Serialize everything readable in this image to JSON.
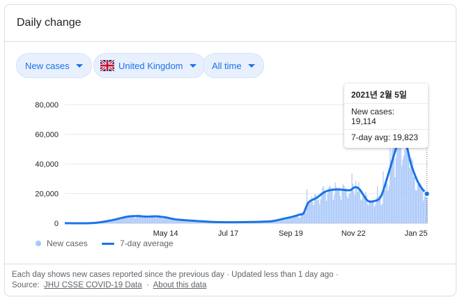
{
  "card": {
    "title": "Daily change"
  },
  "filters": {
    "metric": "New cases",
    "region": "United Kingdom",
    "range": "All time"
  },
  "icons": {
    "dropdown": "chevron-down-icon",
    "flag": "uk-flag-icon"
  },
  "colors": {
    "bar": "#a8c7fa",
    "line": "#1a73e8",
    "accent": "#1a73e8"
  },
  "tooltip": {
    "date": "2021년 2월 5일",
    "new_cases_label": "New cases: 19,114",
    "avg_label": "7-day avg: 19,823"
  },
  "legend": {
    "bars": "New cases",
    "line": "7-day average"
  },
  "footer": {
    "line1": "Each day shows new cases reported since the previous day · Updated less than 1 day ago ·",
    "source_prefix": "Source:",
    "source_link": "JHU CSSE COVID-19 Data",
    "separator": "·",
    "about_link": "About this data"
  },
  "chart_data": {
    "type": "bar",
    "x_ticks": [
      "May 14",
      "Jul 17",
      "Sep 19",
      "Nov 22",
      "Jan 25"
    ],
    "y_ticks": [
      "0",
      "20,000",
      "40,000",
      "60,000",
      "80,000"
    ],
    "ylim": [
      0,
      80000
    ],
    "grid": true,
    "series": [
      {
        "name": "7-day average",
        "type": "line",
        "points": [
          [
            "2020-02-01",
            0
          ],
          [
            "2020-03-01",
            100
          ],
          [
            "2020-03-20",
            2000
          ],
          [
            "2020-04-05",
            4400
          ],
          [
            "2020-04-15",
            4800
          ],
          [
            "2020-04-25",
            4400
          ],
          [
            "2020-05-05",
            4600
          ],
          [
            "2020-05-15",
            3800
          ],
          [
            "2020-05-25",
            2500
          ],
          [
            "2020-06-10",
            1700
          ],
          [
            "2020-06-30",
            900
          ],
          [
            "2020-07-20",
            650
          ],
          [
            "2020-08-10",
            800
          ],
          [
            "2020-08-30",
            1300
          ],
          [
            "2020-09-10",
            2800
          ],
          [
            "2020-09-20",
            4200
          ],
          [
            "2020-09-28",
            5800
          ],
          [
            "2020-10-02",
            6800
          ],
          [
            "2020-10-07",
            14000
          ],
          [
            "2020-10-15",
            17000
          ],
          [
            "2020-10-25",
            21500
          ],
          [
            "2020-11-05",
            22800
          ],
          [
            "2020-11-18",
            22200
          ],
          [
            "2020-11-23",
            24200
          ],
          [
            "2020-11-28",
            23000
          ],
          [
            "2020-12-06",
            15500
          ],
          [
            "2020-12-12",
            14800
          ],
          [
            "2020-12-20",
            18000
          ],
          [
            "2020-12-28",
            34000
          ],
          [
            "2021-01-04",
            49500
          ],
          [
            "2021-01-09",
            59500
          ],
          [
            "2021-01-14",
            55500
          ],
          [
            "2021-01-20",
            39500
          ],
          [
            "2021-01-27",
            27500
          ],
          [
            "2021-02-01",
            22500
          ],
          [
            "2021-02-05",
            19823
          ]
        ]
      },
      {
        "name": "New cases",
        "type": "bar",
        "points": [
          [
            "2020-10-05",
            23000
          ],
          [
            "2020-10-22",
            25000
          ],
          [
            "2020-11-10",
            23500
          ],
          [
            "2020-11-20",
            33500
          ],
          [
            "2020-12-16",
            25000
          ],
          [
            "2020-12-22",
            35000
          ],
          [
            "2020-12-29",
            53000
          ],
          [
            "2021-01-02",
            57500
          ],
          [
            "2021-01-05",
            58500
          ],
          [
            "2021-01-08",
            68000
          ],
          [
            "2021-01-12",
            45500
          ],
          [
            "2021-01-18",
            37500
          ],
          [
            "2021-01-25",
            22000
          ],
          [
            "2021-02-05",
            19114
          ]
        ]
      }
    ],
    "highlight": {
      "date": "2021-02-05",
      "new_cases": 19114,
      "avg": 19823
    }
  }
}
